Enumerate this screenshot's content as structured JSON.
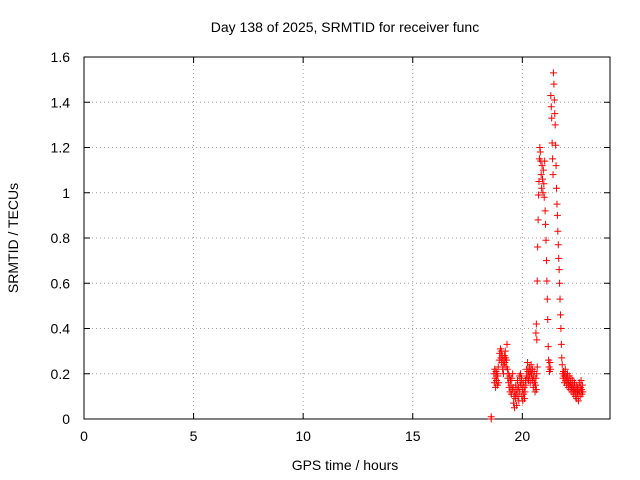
{
  "chart_data": {
    "type": "scatter",
    "title": "Day 138 of 2025, SRMTID for receiver func",
    "xlabel": "GPS time / hours",
    "ylabel": "SRMTID / TECUs",
    "xlim": [
      0,
      24
    ],
    "ylim": [
      0,
      1.6
    ],
    "xticks": [
      0,
      5,
      10,
      15,
      20
    ],
    "xtick_labels": [
      "0",
      "5",
      "10",
      "15",
      "20"
    ],
    "yticks": [
      0,
      0.2,
      0.4,
      0.6,
      0.8,
      1,
      1.2,
      1.4,
      1.6
    ],
    "ytick_labels": [
      "0",
      "0.2",
      "0.4",
      "0.6",
      "0.8",
      "1",
      "1.2",
      "1.4",
      "1.6"
    ],
    "grid": true,
    "marker": "plus",
    "color": "#ff0000",
    "series": [
      {
        "name": "SRMTID",
        "points": [
          [
            18.58,
            0.0
          ],
          [
            18.58,
            0.01
          ],
          [
            18.7,
            0.2
          ],
          [
            18.72,
            0.16
          ],
          [
            18.74,
            0.22
          ],
          [
            18.76,
            0.18
          ],
          [
            18.78,
            0.14
          ],
          [
            18.8,
            0.21
          ],
          [
            18.82,
            0.17
          ],
          [
            18.84,
            0.2
          ],
          [
            18.86,
            0.15
          ],
          [
            18.88,
            0.19
          ],
          [
            18.9,
            0.23
          ],
          [
            18.92,
            0.16
          ],
          [
            18.95,
            0.26
          ],
          [
            18.97,
            0.29
          ],
          [
            19.0,
            0.31
          ],
          [
            19.02,
            0.27
          ],
          [
            19.04,
            0.3
          ],
          [
            19.06,
            0.25
          ],
          [
            19.08,
            0.28
          ],
          [
            19.1,
            0.22
          ],
          [
            19.12,
            0.26
          ],
          [
            19.14,
            0.2
          ],
          [
            19.16,
            0.24
          ],
          [
            19.18,
            0.28
          ],
          [
            19.2,
            0.25
          ],
          [
            19.22,
            0.3
          ],
          [
            19.24,
            0.27
          ],
          [
            19.26,
            0.23
          ],
          [
            19.28,
            0.26
          ],
          [
            19.3,
            0.33
          ],
          [
            19.32,
            0.22
          ],
          [
            19.34,
            0.18
          ],
          [
            19.36,
            0.2
          ],
          [
            19.38,
            0.16
          ],
          [
            19.4,
            0.14
          ],
          [
            19.42,
            0.19
          ],
          [
            19.44,
            0.12
          ],
          [
            19.46,
            0.17
          ],
          [
            19.48,
            0.15
          ],
          [
            19.5,
            0.11
          ],
          [
            19.52,
            0.18
          ],
          [
            19.54,
            0.13
          ],
          [
            19.56,
            0.2
          ],
          [
            19.58,
            0.14
          ],
          [
            19.6,
            0.07
          ],
          [
            19.62,
            0.1
          ],
          [
            19.64,
            0.05
          ],
          [
            19.66,
            0.12
          ],
          [
            19.68,
            0.09
          ],
          [
            19.7,
            0.15
          ],
          [
            19.72,
            0.11
          ],
          [
            19.74,
            0.06
          ],
          [
            19.76,
            0.13
          ],
          [
            19.78,
            0.17
          ],
          [
            19.8,
            0.1
          ],
          [
            19.82,
            0.14
          ],
          [
            19.84,
            0.08
          ],
          [
            19.86,
            0.19
          ],
          [
            19.88,
            0.12
          ],
          [
            19.9,
            0.16
          ],
          [
            19.92,
            0.2
          ],
          [
            19.94,
            0.15
          ],
          [
            19.96,
            0.18
          ],
          [
            19.98,
            0.1
          ],
          [
            20.0,
            0.13
          ],
          [
            20.02,
            0.08
          ],
          [
            20.04,
            0.16
          ],
          [
            20.06,
            0.11
          ],
          [
            20.08,
            0.14
          ],
          [
            20.1,
            0.09
          ],
          [
            20.12,
            0.12
          ],
          [
            20.14,
            0.17
          ],
          [
            20.16,
            0.15
          ],
          [
            20.18,
            0.19
          ],
          [
            20.2,
            0.22
          ],
          [
            20.22,
            0.18
          ],
          [
            20.24,
            0.25
          ],
          [
            20.26,
            0.21
          ],
          [
            20.28,
            0.17
          ],
          [
            20.3,
            0.2
          ],
          [
            20.32,
            0.23
          ],
          [
            20.34,
            0.19
          ],
          [
            20.36,
            0.16
          ],
          [
            20.38,
            0.21
          ],
          [
            20.4,
            0.24
          ],
          [
            20.42,
            0.2
          ],
          [
            20.44,
            0.18
          ],
          [
            20.46,
            0.22
          ],
          [
            20.48,
            0.17
          ],
          [
            20.5,
            0.14
          ],
          [
            20.52,
            0.19
          ],
          [
            20.54,
            0.21
          ],
          [
            20.56,
            0.16
          ],
          [
            20.58,
            0.12
          ],
          [
            20.6,
            0.15
          ],
          [
            20.62,
            0.18
          ],
          [
            20.64,
            0.13
          ],
          [
            20.66,
            0.2
          ],
          [
            20.68,
            0.23
          ],
          [
            20.62,
            0.38
          ],
          [
            20.64,
            0.42
          ],
          [
            20.66,
            0.35
          ],
          [
            20.68,
            0.61
          ],
          [
            20.7,
            0.76
          ],
          [
            20.72,
            0.88
          ],
          [
            20.74,
            0.99
          ],
          [
            20.76,
            1.05
          ],
          [
            20.78,
            1.15
          ],
          [
            20.8,
            1.2
          ],
          [
            20.82,
            1.18
          ],
          [
            20.84,
            1.14
          ],
          [
            20.86,
            1.08
          ],
          [
            20.88,
            1.02
          ],
          [
            20.9,
            1.12
          ],
          [
            20.92,
            1.06
          ],
          [
            20.94,
            1.0
          ],
          [
            20.96,
            1.1
          ],
          [
            20.98,
            1.04
          ],
          [
            21.0,
            0.98
          ],
          [
            21.02,
            1.14
          ],
          [
            21.04,
            0.92
          ],
          [
            21.06,
            0.86
          ],
          [
            21.08,
            0.79
          ],
          [
            21.1,
            0.7
          ],
          [
            21.12,
            0.61
          ],
          [
            21.14,
            0.53
          ],
          [
            21.16,
            0.44
          ],
          [
            21.18,
            0.32
          ],
          [
            21.2,
            0.26
          ],
          [
            21.22,
            0.23
          ],
          [
            21.24,
            0.21
          ],
          [
            21.26,
            0.25
          ],
          [
            21.28,
            0.22
          ],
          [
            21.3,
            1.43
          ],
          [
            21.32,
            1.38
          ],
          [
            21.34,
            1.33
          ],
          [
            21.36,
            1.22
          ],
          [
            21.38,
            1.15
          ],
          [
            21.4,
            1.08
          ],
          [
            21.42,
            1.53
          ],
          [
            21.44,
            1.48
          ],
          [
            21.46,
            1.41
          ],
          [
            21.48,
            1.35
          ],
          [
            21.5,
            1.3
          ],
          [
            21.52,
            1.21
          ],
          [
            21.54,
            1.12
          ],
          [
            21.56,
            1.02
          ],
          [
            21.58,
            0.95
          ],
          [
            21.6,
            0.9
          ],
          [
            21.62,
            0.83
          ],
          [
            21.64,
            0.77
          ],
          [
            21.66,
            0.71
          ],
          [
            21.68,
            0.66
          ],
          [
            21.7,
            0.6
          ],
          [
            21.72,
            0.53
          ],
          [
            21.74,
            0.46
          ],
          [
            21.76,
            0.4
          ],
          [
            21.78,
            0.33
          ],
          [
            21.8,
            0.27
          ],
          [
            21.82,
            0.24
          ],
          [
            21.84,
            0.2
          ],
          [
            21.86,
            0.18
          ],
          [
            21.88,
            0.21
          ],
          [
            21.9,
            0.19
          ],
          [
            21.92,
            0.16
          ],
          [
            21.94,
            0.2
          ],
          [
            21.96,
            0.22
          ],
          [
            21.98,
            0.17
          ],
          [
            22.0,
            0.19
          ],
          [
            22.02,
            0.15
          ],
          [
            22.04,
            0.18
          ],
          [
            22.06,
            0.2
          ],
          [
            22.08,
            0.16
          ],
          [
            22.1,
            0.14
          ],
          [
            22.12,
            0.17
          ],
          [
            22.14,
            0.19
          ],
          [
            22.16,
            0.15
          ],
          [
            22.18,
            0.13
          ],
          [
            22.2,
            0.16
          ],
          [
            22.22,
            0.18
          ],
          [
            22.24,
            0.14
          ],
          [
            22.26,
            0.12
          ],
          [
            22.28,
            0.15
          ],
          [
            22.3,
            0.17
          ],
          [
            22.32,
            0.13
          ],
          [
            22.34,
            0.11
          ],
          [
            22.36,
            0.14
          ],
          [
            22.38,
            0.16
          ],
          [
            22.4,
            0.12
          ],
          [
            22.42,
            0.1
          ],
          [
            22.44,
            0.13
          ],
          [
            22.46,
            0.15
          ],
          [
            22.48,
            0.09
          ],
          [
            22.5,
            0.12
          ],
          [
            22.52,
            0.14
          ],
          [
            22.54,
            0.11
          ],
          [
            22.56,
            0.08
          ],
          [
            22.58,
            0.13
          ],
          [
            22.6,
            0.16
          ],
          [
            22.62,
            0.12
          ],
          [
            22.64,
            0.1
          ],
          [
            22.66,
            0.14
          ],
          [
            22.68,
            0.17
          ],
          [
            22.7,
            0.13
          ],
          [
            22.72,
            0.11
          ],
          [
            22.74,
            0.15
          ],
          [
            22.76,
            0.12
          ]
        ]
      }
    ]
  }
}
